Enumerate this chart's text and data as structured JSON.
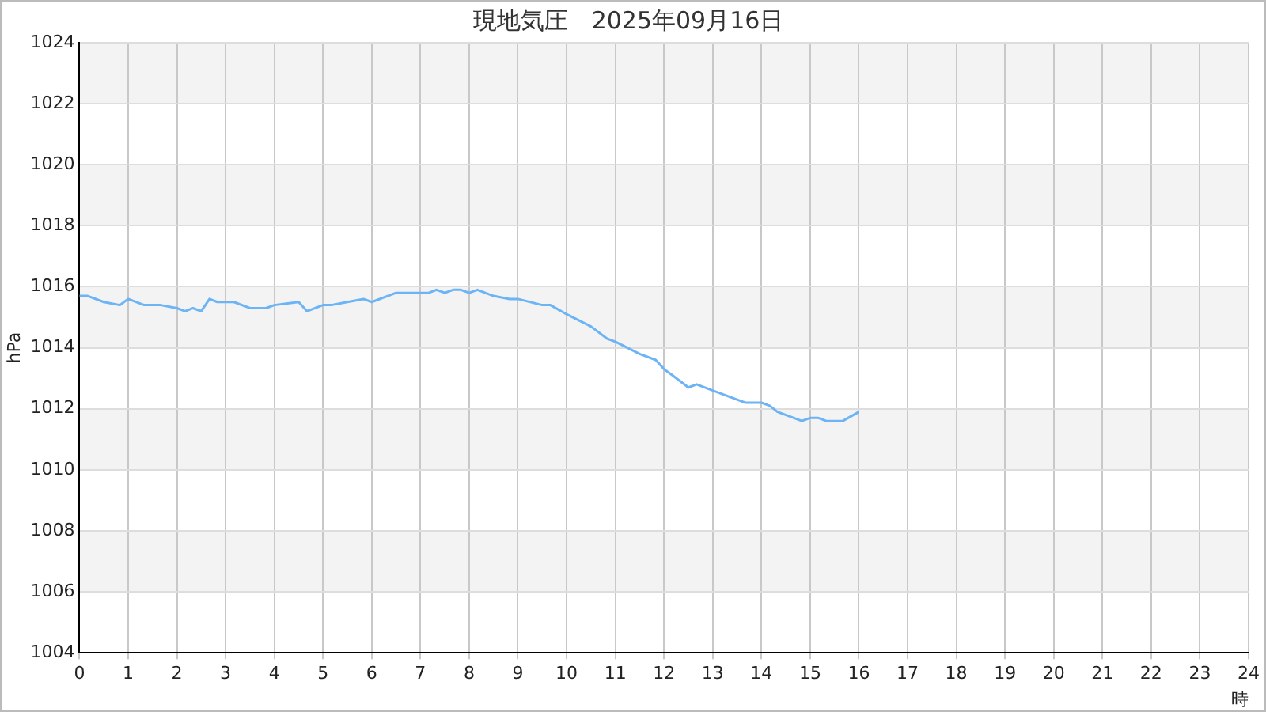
{
  "chart_data": {
    "type": "line",
    "title": "現地気圧　2025年09月16日",
    "xlabel": "時",
    "ylabel": "hPa",
    "x": [
      0,
      0.17,
      0.5,
      0.83,
      1,
      1.33,
      1.67,
      2,
      2.17,
      2.33,
      2.5,
      2.67,
      2.83,
      3.17,
      3.5,
      3.83,
      4,
      4.5,
      4.67,
      5,
      5.17,
      5.5,
      5.83,
      6,
      6.5,
      7,
      7.17,
      7.33,
      7.5,
      7.67,
      7.83,
      8,
      8.17,
      8.5,
      8.83,
      9,
      9.5,
      9.67,
      10,
      10.5,
      10.83,
      11,
      11.5,
      11.83,
      12,
      12.17,
      12.5,
      12.67,
      13,
      13.5,
      13.67,
      14,
      14.17,
      14.33,
      14.83,
      15,
      15.17,
      15.33,
      15.67,
      16
    ],
    "series": [
      {
        "color": "#6cb4f5",
        "values": [
          1015.7,
          1015.7,
          1015.5,
          1015.4,
          1015.6,
          1015.4,
          1015.4,
          1015.3,
          1015.2,
          1015.3,
          1015.2,
          1015.6,
          1015.5,
          1015.5,
          1015.3,
          1015.3,
          1015.4,
          1015.5,
          1015.2,
          1015.4,
          1015.4,
          1015.5,
          1015.6,
          1015.5,
          1015.8,
          1015.8,
          1015.8,
          1015.9,
          1015.8,
          1015.9,
          1015.9,
          1015.8,
          1015.9,
          1015.7,
          1015.6,
          1015.6,
          1015.4,
          1015.4,
          1015.1,
          1014.7,
          1014.3,
          1014.2,
          1013.8,
          1013.6,
          1013.3,
          1013.1,
          1012.7,
          1012.8,
          1012.6,
          1012.3,
          1012.2,
          1012.2,
          1012.1,
          1011.9,
          1011.6,
          1011.7,
          1011.7,
          1011.6,
          1011.6,
          1011.9
        ]
      }
    ],
    "xlim": [
      0,
      24
    ],
    "xticks": [
      0,
      1,
      2,
      3,
      4,
      5,
      6,
      7,
      8,
      9,
      10,
      11,
      12,
      13,
      14,
      15,
      16,
      17,
      18,
      19,
      20,
      21,
      22,
      23,
      24
    ],
    "ylim": [
      1004,
      1024
    ],
    "yticks": [
      1004,
      1006,
      1008,
      1010,
      1012,
      1014,
      1016,
      1018,
      1020,
      1022,
      1024
    ],
    "grid": true,
    "legend": false,
    "marker": "none",
    "line_style": "solid"
  }
}
